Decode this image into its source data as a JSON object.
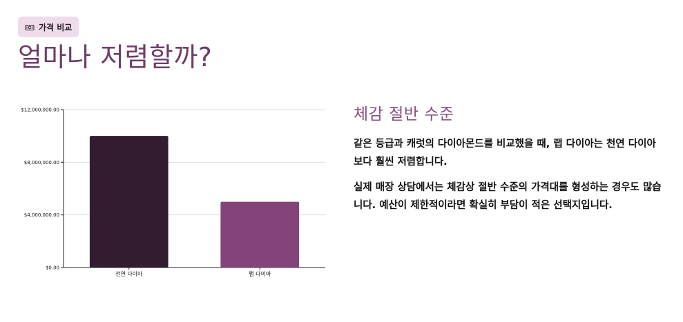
{
  "badge": {
    "icon": "money-icon",
    "label": "가격 비교"
  },
  "page_title": "얼마나 저렴할까?",
  "colors": {
    "title": "#6e3d68",
    "badge_bg": "#eedcec",
    "side_heading": "#8a4f82",
    "bar_natural": "#321c2f",
    "bar_lab": "#83447a",
    "gridline": "#dddddd"
  },
  "chart_data": {
    "type": "bar",
    "categories": [
      "천연 다이아",
      "랩 다이아"
    ],
    "values": [
      10000000,
      5000000
    ],
    "yticks": [
      0,
      4000000,
      8000000,
      12000000
    ],
    "ytick_labels": [
      "$0.00",
      "$4,000,000.00",
      "$8,000,000.00",
      "$12,000,000.00"
    ],
    "ylim": [
      0,
      12000000
    ],
    "grid": true,
    "bar_colors": [
      "#321c2f",
      "#83447a"
    ],
    "title": "",
    "xlabel": "",
    "ylabel": ""
  },
  "side": {
    "heading": "체감 절반 수준",
    "paragraphs": [
      "같은 등급과 캐럿의 다이아몬드를 비교했을 때, 랩 다이아는 천연 다이아보다 훨씬 저렴합니다.",
      "실제 매장 상담에서는 체감상 절반 수준의 가격대를 형성하는 경우도 많습니다. 예산이 제한적이라면 확실히 부담이 적은 선택지입니다."
    ]
  }
}
